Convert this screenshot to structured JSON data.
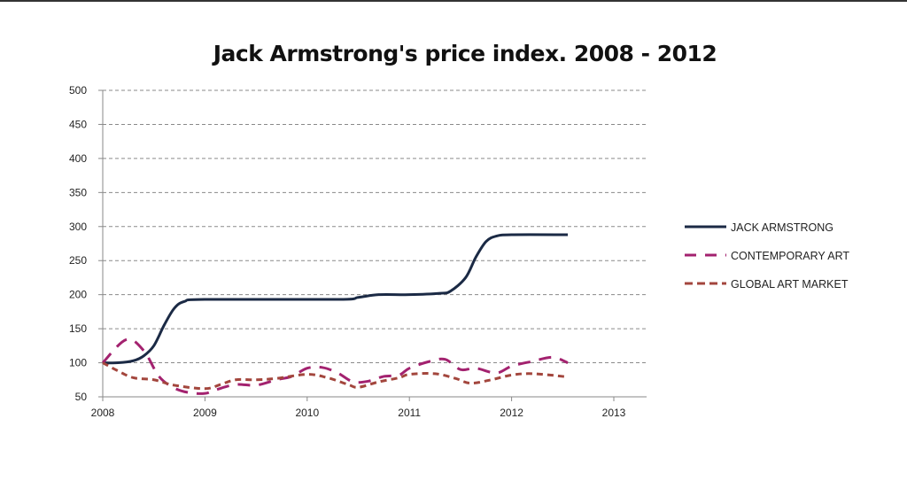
{
  "chart_data": {
    "type": "line",
    "title": "Jack Armstrong's price index. 2008 - 2012",
    "xlabel": "",
    "ylabel": "",
    "xlim": [
      2008,
      2013
    ],
    "ylim": [
      50,
      500
    ],
    "xticks": [
      "2008",
      "2009",
      "2010",
      "2011",
      "2012",
      "2013"
    ],
    "yticks": [
      "50",
      "100",
      "150",
      "200",
      "250",
      "300",
      "350",
      "400",
      "450",
      "500"
    ],
    "grid": "horizontal dashed",
    "legend": "right",
    "series": [
      {
        "name": "JACK ARMSTRONG",
        "color": "#1b2a45",
        "dash": "solid",
        "x": [
          2008,
          2008.15,
          2008.3,
          2008.4,
          2008.5,
          2008.6,
          2008.7,
          2008.8,
          2009,
          2010.3,
          2010.5,
          2010.7,
          2011,
          2011.3,
          2011.4,
          2011.55,
          2011.65,
          2011.75,
          2011.85,
          2012,
          2012.55
        ],
        "y": [
          100,
          100,
          103,
          110,
          125,
          155,
          180,
          190,
          193,
          193,
          196,
          200,
          200,
          202,
          205,
          225,
          255,
          278,
          286,
          288,
          288
        ]
      },
      {
        "name": "CONTEMPORARY ART",
        "color": "#a3226f",
        "dash": "long",
        "x": [
          2008,
          2008.23,
          2008.4,
          2008.55,
          2008.7,
          2008.85,
          2009,
          2009.1,
          2009.3,
          2009.5,
          2009.7,
          2009.85,
          2010,
          2010.15,
          2010.3,
          2010.45,
          2010.6,
          2010.75,
          2010.9,
          2011,
          2011.2,
          2011.35,
          2011.5,
          2011.65,
          2011.85,
          2012,
          2012.2,
          2012.4,
          2012.55
        ],
        "y": [
          100,
          134,
          118,
          80,
          63,
          56,
          55,
          60,
          68,
          67,
          75,
          80,
          92,
          93,
          85,
          72,
          73,
          80,
          82,
          92,
          102,
          105,
          90,
          92,
          85,
          95,
          102,
          108,
          100
        ]
      },
      {
        "name": "GLOBAL ART MARKET",
        "color": "#a3463d",
        "dash": "short",
        "x": [
          2008,
          2008.15,
          2008.3,
          2008.5,
          2008.7,
          2009,
          2009.15,
          2009.3,
          2009.5,
          2009.7,
          2010,
          2010.2,
          2010.4,
          2010.5,
          2010.7,
          2010.9,
          2011,
          2011.25,
          2011.45,
          2011.6,
          2011.8,
          2012,
          2012.2,
          2012.5,
          2012.55
        ],
        "y": [
          100,
          88,
          78,
          75,
          67,
          62,
          68,
          75,
          75,
          77,
          83,
          78,
          68,
          64,
          72,
          78,
          83,
          84,
          77,
          70,
          75,
          82,
          84,
          80,
          78
        ]
      }
    ]
  }
}
